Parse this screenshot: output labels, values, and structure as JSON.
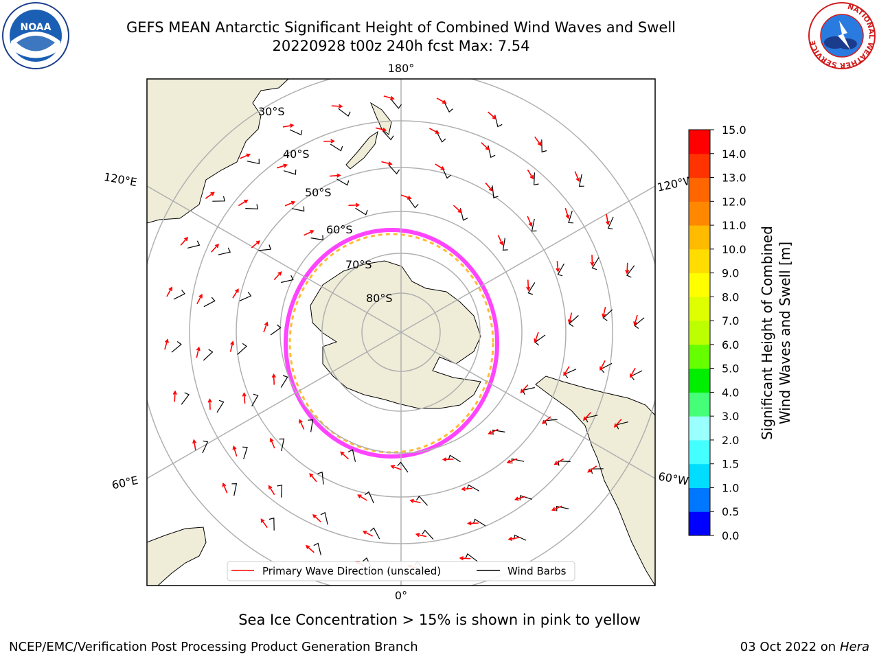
{
  "header": {
    "title_line1": "GEFS MEAN Antarctic Significant Height of Combined Wind Waves and Swell",
    "title_line2": "20220928 t00z 240h fcst   Max: 7.54"
  },
  "logos": {
    "left_text": "NOAA",
    "right_ring_text": "NATIONAL WEATHER SERVICE"
  },
  "map": {
    "projection": "south-polar-stereographic",
    "meridian_labels": [
      {
        "text": "180°",
        "lon": 180
      },
      {
        "text": "120°E",
        "lon": 120
      },
      {
        "text": "120°W",
        "lon": -120
      },
      {
        "text": "60°E",
        "lon": 60
      },
      {
        "text": "60°W",
        "lon": -60
      },
      {
        "text": "0°",
        "lon": 0
      }
    ],
    "parallel_labels": [
      "30°S",
      "40°S",
      "50°S",
      "60°S",
      "70°S",
      "80°S"
    ],
    "legend": {
      "wave_direction": "Primary Wave Direction (unscaled)",
      "wind_barbs": "Wind Barbs"
    },
    "colors": {
      "land": "#efedd8",
      "sea_ice_edge": "#ff44ff",
      "sea_ice_inner": "#ffbb33",
      "wave_arrow": "#ff0000",
      "wind_barb": "#000000"
    }
  },
  "colorbar": {
    "label_line1": "Significant Height of Combined",
    "label_line2": "Wind Waves and Swell [m]",
    "ticks": [
      "0.0",
      "0.5",
      "1.0",
      "1.5",
      "2.0",
      "3.0",
      "4.0",
      "5.0",
      "6.0",
      "7.0",
      "8.0",
      "9.0",
      "10.0",
      "11.0",
      "12.0",
      "13.0",
      "14.0",
      "15.0"
    ],
    "colors": [
      "#0000ff",
      "#0077ff",
      "#00ddff",
      "#44ffff",
      "#99ffff",
      "#44ff77",
      "#00ee00",
      "#66ff00",
      "#bbff00",
      "#ddff00",
      "#ffff00",
      "#ffdd00",
      "#ffbb00",
      "#ff8800",
      "#ff6600",
      "#ff3300",
      "#ff0000"
    ]
  },
  "footer": {
    "subtitle": "Sea Ice Concentration > 15% is shown in pink to yellow",
    "credit": "NCEP/EMC/Verification Post Processing Product Generation Branch",
    "date": "03 Oct 2022 on ",
    "host": "Hera"
  }
}
